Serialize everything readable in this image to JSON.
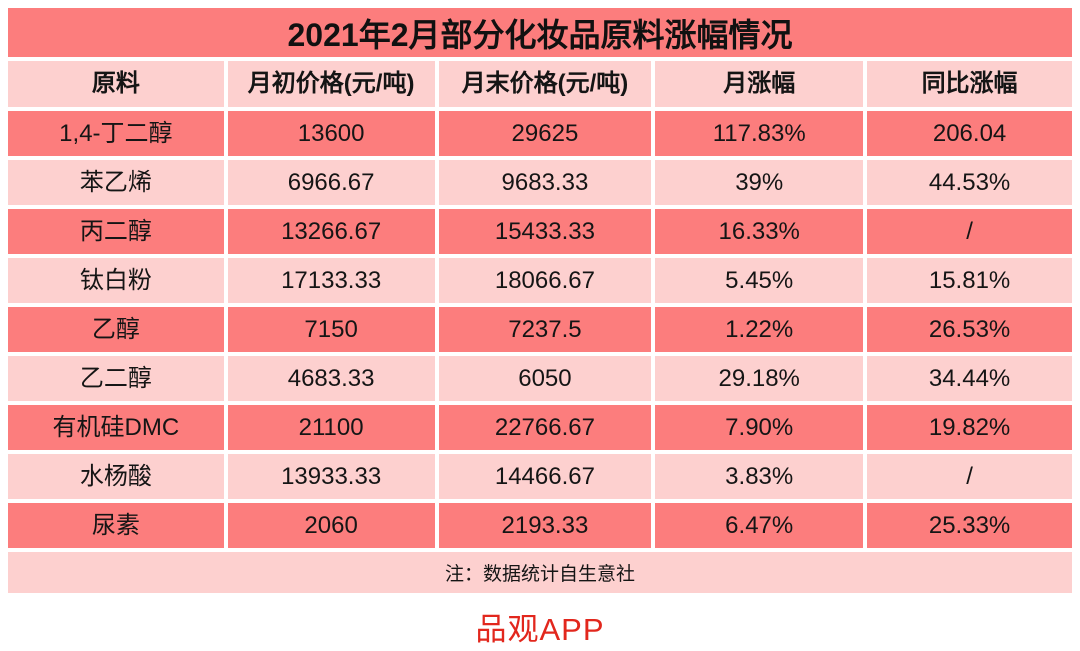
{
  "page": {
    "title": "2021年2月部分化妆品原料涨幅情况",
    "note": "注：数据统计自生意社",
    "logo": "品观APP"
  },
  "colors": {
    "row_salmon": "#fc7d7d",
    "row_pink": "#fdd0cf",
    "text": "#151515",
    "logo_red": "#e2271d",
    "background": "#ffffff"
  },
  "chart_data": {
    "type": "table",
    "title": "2021年2月部分化妆品原料涨幅情况",
    "columns": [
      "原料",
      "月初价格(元/吨)",
      "月末价格(元/吨)",
      "月涨幅",
      "同比涨幅"
    ],
    "rows": [
      [
        "1,4-丁二醇",
        "13600",
        "29625",
        "117.83%",
        "206.04"
      ],
      [
        "苯乙烯",
        "6966.67",
        "9683.33",
        "39%",
        "44.53%"
      ],
      [
        "丙二醇",
        "13266.67",
        "15433.33",
        "16.33%",
        "/"
      ],
      [
        "钛白粉",
        "17133.33",
        "18066.67",
        "5.45%",
        "15.81%"
      ],
      [
        "乙醇",
        "7150",
        "7237.5",
        "1.22%",
        "26.53%"
      ],
      [
        "乙二醇",
        "4683.33",
        "6050",
        "29.18%",
        "34.44%"
      ],
      [
        "有机硅DMC",
        "21100",
        "22766.67",
        "7.90%",
        "19.82%"
      ],
      [
        "水杨酸",
        "13933.33",
        "14466.67",
        "3.83%",
        "/"
      ],
      [
        "尿素",
        "2060",
        "2193.33",
        "6.47%",
        "25.33%"
      ]
    ],
    "note": "注：数据统计自生意社",
    "source_label": "品观APP",
    "layout": {
      "row_striping": "odd-rows-salmon-even-rows-pink",
      "grid": "white 4px gaps"
    }
  }
}
